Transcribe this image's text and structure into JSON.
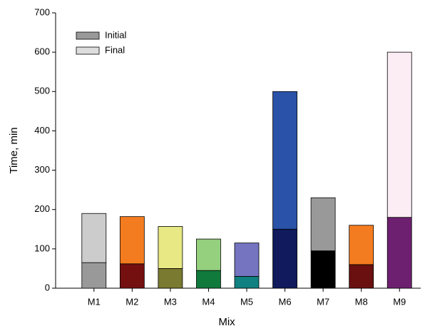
{
  "chart_data": {
    "type": "stacked_bar",
    "x_label": "Mix",
    "y_label": "Time, min",
    "categories": [
      "M1",
      "M2",
      "M3",
      "M4",
      "M5",
      "M6",
      "M7",
      "M8",
      "M9"
    ],
    "series": [
      {
        "name": "Initial",
        "color": "#999999",
        "values": [
          65,
          62,
          50,
          45,
          30,
          150,
          95,
          60,
          180
        ],
        "colors": [
          "#999999",
          "#751010",
          "#7a7a30",
          "#107a3c",
          "#108080",
          "#101a5c",
          "#000000",
          "#6a1010",
          "#6e2070"
        ]
      },
      {
        "name": "Final",
        "color": "#dddddd",
        "values": [
          125,
          120,
          107,
          80,
          85,
          350,
          135,
          100,
          420
        ],
        "colors": [
          "#cccccc",
          "#f47c20",
          "#e8e884",
          "#94d07e",
          "#7474c0",
          "#2a52a8",
          "#999999",
          "#f47c20",
          "#fcecf4"
        ]
      }
    ],
    "ylim": [
      0,
      700
    ],
    "yticks": [
      0,
      100,
      200,
      300,
      400,
      500,
      600,
      700
    ],
    "legend": "top-left"
  }
}
